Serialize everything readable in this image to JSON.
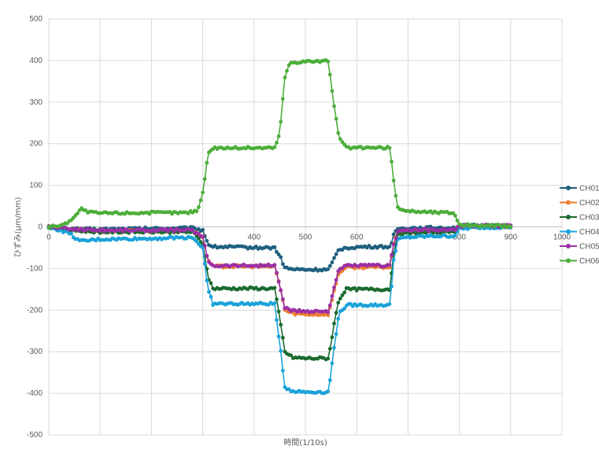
{
  "chart_data": {
    "type": "line",
    "title": "",
    "xlabel": "時間(1/10s)",
    "ylabel": "ひずみ(μm/mm)",
    "xlim": [
      0,
      1000
    ],
    "ylim": [
      -500,
      500
    ],
    "x_ticks": [
      0,
      100,
      200,
      300,
      400,
      500,
      600,
      700,
      800,
      900,
      1000
    ],
    "y_ticks": [
      500,
      400,
      300,
      200,
      100,
      0,
      -100,
      -200,
      -300,
      -400,
      -500
    ],
    "x_tick_labels": [
      "0",
      "",
      "",
      "",
      "400",
      "500",
      "600",
      "",
      "800",
      "900",
      "1000"
    ],
    "y_tick_labels": [
      "500",
      "400",
      "300",
      "200",
      "100",
      "0",
      "-100",
      "-200",
      "-300",
      "-400",
      "-500"
    ],
    "grid": true,
    "legend_position": "right",
    "series": [
      {
        "name": "CH01",
        "color": "#1f5f7f",
        "points": [
          [
            0,
            0
          ],
          [
            40,
            -5
          ],
          [
            100,
            -6
          ],
          [
            200,
            -4
          ],
          [
            280,
            -3
          ],
          [
            300,
            -8
          ],
          [
            310,
            -40
          ],
          [
            320,
            -48
          ],
          [
            350,
            -48
          ],
          [
            400,
            -50
          ],
          [
            440,
            -50
          ],
          [
            450,
            -70
          ],
          [
            460,
            -98
          ],
          [
            475,
            -102
          ],
          [
            500,
            -103
          ],
          [
            545,
            -103
          ],
          [
            555,
            -80
          ],
          [
            565,
            -55
          ],
          [
            580,
            -50
          ],
          [
            620,
            -48
          ],
          [
            665,
            -48
          ],
          [
            672,
            -20
          ],
          [
            680,
            -5
          ],
          [
            700,
            -3
          ],
          [
            750,
            -2
          ],
          [
            790,
            -2
          ],
          [
            800,
            2
          ],
          [
            830,
            3
          ],
          [
            900,
            2
          ]
        ]
      },
      {
        "name": "CH02",
        "color": "#ed7d31",
        "points": [
          [
            0,
            0
          ],
          [
            40,
            -7
          ],
          [
            100,
            -10
          ],
          [
            200,
            -10
          ],
          [
            280,
            -10
          ],
          [
            300,
            -25
          ],
          [
            310,
            -80
          ],
          [
            320,
            -95
          ],
          [
            350,
            -95
          ],
          [
            400,
            -95
          ],
          [
            440,
            -95
          ],
          [
            450,
            -140
          ],
          [
            460,
            -200
          ],
          [
            475,
            -208
          ],
          [
            500,
            -210
          ],
          [
            545,
            -210
          ],
          [
            555,
            -160
          ],
          [
            565,
            -110
          ],
          [
            580,
            -97
          ],
          [
            620,
            -97
          ],
          [
            665,
            -97
          ],
          [
            672,
            -40
          ],
          [
            680,
            -15
          ],
          [
            700,
            -12
          ],
          [
            750,
            -10
          ],
          [
            790,
            -10
          ],
          [
            800,
            0
          ],
          [
            830,
            1
          ],
          [
            900,
            0
          ]
        ]
      },
      {
        "name": "CH03",
        "color": "#1b6b2e",
        "points": [
          [
            0,
            0
          ],
          [
            40,
            -8
          ],
          [
            100,
            -12
          ],
          [
            200,
            -12
          ],
          [
            280,
            -12
          ],
          [
            300,
            -40
          ],
          [
            310,
            -120
          ],
          [
            320,
            -148
          ],
          [
            350,
            -148
          ],
          [
            400,
            -148
          ],
          [
            440,
            -148
          ],
          [
            450,
            -220
          ],
          [
            460,
            -300
          ],
          [
            475,
            -314
          ],
          [
            500,
            -316
          ],
          [
            545,
            -316
          ],
          [
            555,
            -240
          ],
          [
            565,
            -175
          ],
          [
            580,
            -150
          ],
          [
            620,
            -150
          ],
          [
            665,
            -150
          ],
          [
            672,
            -60
          ],
          [
            680,
            -20
          ],
          [
            700,
            -15
          ],
          [
            750,
            -13
          ],
          [
            790,
            -13
          ],
          [
            800,
            0
          ],
          [
            830,
            1
          ],
          [
            900,
            0
          ]
        ]
      },
      {
        "name": "CH04",
        "color": "#1aa3d9",
        "points": [
          [
            0,
            0
          ],
          [
            40,
            -15
          ],
          [
            60,
            -35
          ],
          [
            100,
            -30
          ],
          [
            200,
            -28
          ],
          [
            280,
            -25
          ],
          [
            300,
            -50
          ],
          [
            310,
            -150
          ],
          [
            320,
            -185
          ],
          [
            350,
            -185
          ],
          [
            400,
            -185
          ],
          [
            440,
            -185
          ],
          [
            450,
            -280
          ],
          [
            460,
            -385
          ],
          [
            475,
            -395
          ],
          [
            500,
            -397
          ],
          [
            545,
            -397
          ],
          [
            555,
            -300
          ],
          [
            565,
            -210
          ],
          [
            580,
            -188
          ],
          [
            620,
            -188
          ],
          [
            665,
            -188
          ],
          [
            672,
            -80
          ],
          [
            680,
            -30
          ],
          [
            700,
            -25
          ],
          [
            750,
            -22
          ],
          [
            790,
            -22
          ],
          [
            800,
            -5
          ],
          [
            830,
            -2
          ],
          [
            900,
            0
          ]
        ]
      },
      {
        "name": "CH05",
        "color": "#9b2fa6",
        "points": [
          [
            0,
            0
          ],
          [
            40,
            -5
          ],
          [
            100,
            -8
          ],
          [
            200,
            -8
          ],
          [
            280,
            -8
          ],
          [
            300,
            -25
          ],
          [
            310,
            -80
          ],
          [
            320,
            -93
          ],
          [
            350,
            -93
          ],
          [
            400,
            -93
          ],
          [
            440,
            -93
          ],
          [
            450,
            -140
          ],
          [
            460,
            -195
          ],
          [
            475,
            -202
          ],
          [
            500,
            -203
          ],
          [
            545,
            -203
          ],
          [
            555,
            -150
          ],
          [
            565,
            -105
          ],
          [
            580,
            -93
          ],
          [
            620,
            -93
          ],
          [
            665,
            -93
          ],
          [
            672,
            -40
          ],
          [
            680,
            -10
          ],
          [
            700,
            -8
          ],
          [
            750,
            -8
          ],
          [
            790,
            -8
          ],
          [
            800,
            2
          ],
          [
            830,
            3
          ],
          [
            900,
            2
          ]
        ]
      },
      {
        "name": "CH06",
        "color": "#4cae3a",
        "points": [
          [
            0,
            0
          ],
          [
            30,
            5
          ],
          [
            50,
            25
          ],
          [
            65,
            45
          ],
          [
            75,
            35
          ],
          [
            100,
            33
          ],
          [
            200,
            34
          ],
          [
            270,
            34
          ],
          [
            290,
            40
          ],
          [
            300,
            80
          ],
          [
            310,
            175
          ],
          [
            320,
            190
          ],
          [
            350,
            190
          ],
          [
            400,
            190
          ],
          [
            440,
            190
          ],
          [
            450,
            225
          ],
          [
            460,
            360
          ],
          [
            470,
            395
          ],
          [
            500,
            398
          ],
          [
            545,
            398
          ],
          [
            555,
            300
          ],
          [
            565,
            215
          ],
          [
            580,
            190
          ],
          [
            620,
            190
          ],
          [
            665,
            190
          ],
          [
            672,
            110
          ],
          [
            680,
            45
          ],
          [
            700,
            38
          ],
          [
            750,
            35
          ],
          [
            790,
            34
          ],
          [
            800,
            5
          ],
          [
            830,
            3
          ],
          [
            900,
            2
          ]
        ]
      }
    ]
  }
}
